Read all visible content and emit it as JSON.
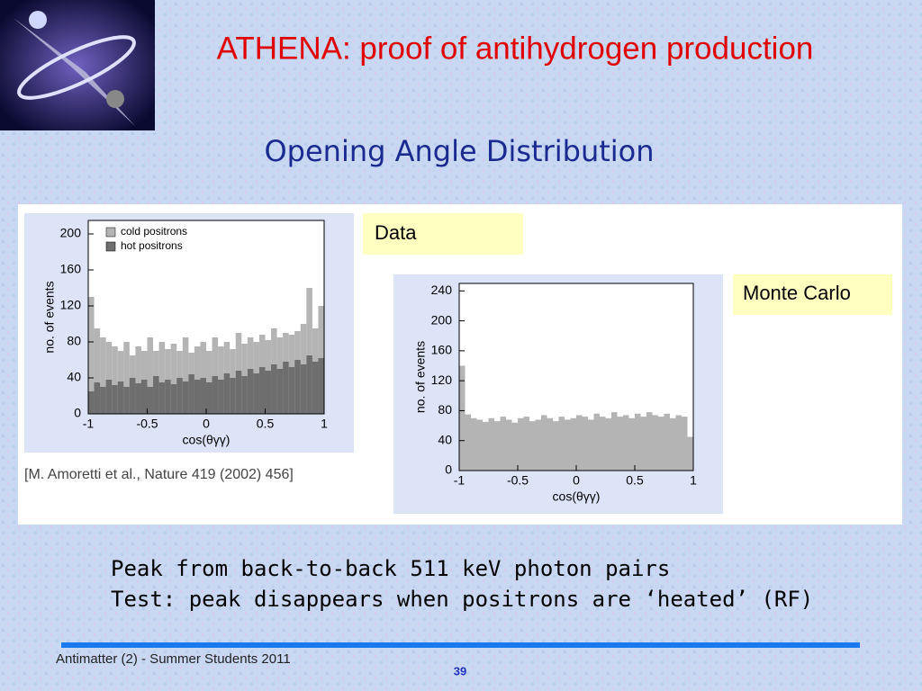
{
  "header": {
    "title": "ATHENA: proof of antihydrogen production",
    "subtitle": "Opening Angle Distribution"
  },
  "chart_data": [
    {
      "type": "histogram",
      "y_label": "no. of events",
      "x_label": "cos(θγγ)",
      "bins": [
        -1,
        -0.95,
        -0.9,
        -0.85,
        -0.8,
        -0.75,
        -0.7,
        -0.65,
        -0.6,
        -0.55,
        -0.5,
        -0.45,
        -0.4,
        -0.35,
        -0.3,
        -0.25,
        -0.2,
        -0.15,
        -0.1,
        -0.05,
        0,
        0.05,
        0.1,
        0.15,
        0.2,
        0.25,
        0.3,
        0.35,
        0.4,
        0.45,
        0.5,
        0.55,
        0.6,
        0.65,
        0.7,
        0.75,
        0.8,
        0.85,
        0.9,
        0.95,
        1
      ],
      "series": [
        {
          "name": "cold positrons",
          "color": "#b4b4b4",
          "values": [
            130,
            95,
            85,
            80,
            75,
            70,
            80,
            65,
            75,
            70,
            85,
            70,
            80,
            72,
            78,
            70,
            85,
            68,
            75,
            80,
            70,
            85,
            75,
            80,
            72,
            90,
            78,
            85,
            80,
            88,
            82,
            95,
            85,
            90,
            88,
            92,
            100,
            140,
            95,
            120
          ]
        },
        {
          "name": "hot positrons",
          "color": "#6e6e6e",
          "values": [
            25,
            35,
            30,
            38,
            32,
            36,
            30,
            40,
            34,
            38,
            30,
            42,
            35,
            38,
            33,
            40,
            36,
            44,
            38,
            40,
            35,
            42,
            38,
            45,
            40,
            48,
            42,
            50,
            45,
            52,
            48,
            55,
            50,
            58,
            52,
            60,
            55,
            65,
            58,
            62
          ]
        }
      ],
      "xlim": [
        -1,
        1
      ],
      "xticks": [
        -1,
        -0.5,
        0,
        0.5,
        1
      ],
      "ylim": [
        0,
        215
      ],
      "yticks": [
        0,
        40,
        80,
        120,
        160,
        200
      ],
      "legend": "upper left"
    },
    {
      "type": "histogram",
      "y_label": "no. of events",
      "x_label": "cos(θγγ)",
      "bins": [
        -1,
        -0.95,
        -0.9,
        -0.85,
        -0.8,
        -0.75,
        -0.7,
        -0.65,
        -0.6,
        -0.55,
        -0.5,
        -0.45,
        -0.4,
        -0.35,
        -0.3,
        -0.25,
        -0.2,
        -0.15,
        -0.1,
        -0.05,
        0,
        0.05,
        0.1,
        0.15,
        0.2,
        0.25,
        0.3,
        0.35,
        0.4,
        0.45,
        0.5,
        0.55,
        0.6,
        0.65,
        0.7,
        0.75,
        0.8,
        0.85,
        0.9,
        0.95,
        1
      ],
      "values": [
        140,
        75,
        70,
        68,
        65,
        70,
        66,
        72,
        68,
        64,
        70,
        72,
        66,
        68,
        74,
        70,
        66,
        72,
        68,
        70,
        74,
        72,
        68,
        76,
        72,
        70,
        78,
        72,
        74,
        70,
        76,
        72,
        78,
        74,
        72,
        76,
        70,
        74,
        72,
        45
      ],
      "color": "#b4b4b4",
      "xlim": [
        -1,
        1
      ],
      "xticks": [
        -1,
        -0.5,
        0,
        0.5,
        1
      ],
      "ylim": [
        0,
        250
      ],
      "yticks": [
        0,
        40,
        80,
        120,
        160,
        200,
        240
      ]
    }
  ],
  "labels": {
    "data": "Data",
    "monte_carlo": "Monte Carlo",
    "citation": "[M. Amoretti et al., Nature 419 (2002) 456]"
  },
  "bullets": [
    "Peak from back-to-back 511 keV photon pairs",
    "Test: peak disappears when positrons are ‘heated’ (RF)"
  ],
  "footer": {
    "text": "Antimatter (2) - Summer Students 2011",
    "page": "39"
  }
}
